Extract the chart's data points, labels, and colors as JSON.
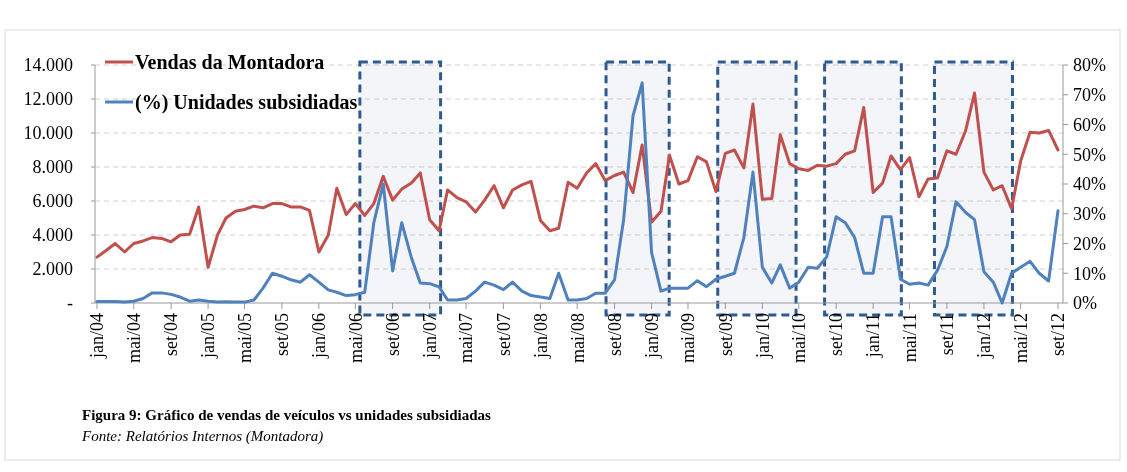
{
  "chart_data": {
    "type": "line",
    "title": "Figura 9: Gráfico de vendas de veículos vs unidades subsidiadas",
    "annotations": [
      "Fonte: Relatórios Internos (Montadora)"
    ],
    "x": [
      "2004-01",
      "2004-02",
      "2004-03",
      "2004-04",
      "2004-05",
      "2004-06",
      "2004-07",
      "2004-08",
      "2004-09",
      "2004-10",
      "2004-11",
      "2004-12",
      "2005-01",
      "2005-02",
      "2005-03",
      "2005-04",
      "2005-05",
      "2005-06",
      "2005-07",
      "2005-08",
      "2005-09",
      "2005-10",
      "2005-11",
      "2005-12",
      "2006-01",
      "2006-02",
      "2006-03",
      "2006-04",
      "2006-05",
      "2006-06",
      "2006-07",
      "2006-08",
      "2006-09",
      "2006-10",
      "2006-11",
      "2006-12",
      "2007-01",
      "2007-02",
      "2007-03",
      "2007-04",
      "2007-05",
      "2007-06",
      "2007-07",
      "2007-08",
      "2007-09",
      "2007-10",
      "2007-11",
      "2007-12",
      "2008-01",
      "2008-02",
      "2008-03",
      "2008-04",
      "2008-05",
      "2008-06",
      "2008-07",
      "2008-08",
      "2008-09",
      "2008-10",
      "2008-11",
      "2008-12",
      "2009-01",
      "2009-02",
      "2009-03",
      "2009-04",
      "2009-05",
      "2009-06",
      "2009-07",
      "2009-08",
      "2009-09",
      "2009-10",
      "2009-11",
      "2009-12",
      "2010-01",
      "2010-02",
      "2010-03",
      "2010-04",
      "2010-05",
      "2010-06",
      "2010-07",
      "2010-08",
      "2010-09",
      "2010-10",
      "2010-11",
      "2010-12",
      "2011-01",
      "2011-02",
      "2011-03",
      "2011-04",
      "2011-05",
      "2011-06",
      "2011-07",
      "2011-08",
      "2011-09",
      "2011-10",
      "2011-11",
      "2011-12",
      "2012-01",
      "2012-02",
      "2012-03",
      "2012-04",
      "2012-05",
      "2012-06",
      "2012-07",
      "2012-08",
      "2012-09"
    ],
    "series": [
      {
        "name": "Vendas da Montadora",
        "color": "#c0504d",
        "values": [
          2700,
          3100,
          3500,
          3000,
          3500,
          3650,
          3850,
          3800,
          3600,
          4000,
          4050,
          5650,
          2100,
          4000,
          5000,
          5400,
          5500,
          5700,
          5600,
          5850,
          5850,
          5650,
          5650,
          5450,
          3000,
          4000,
          6750,
          5200,
          5850,
          5150,
          5850,
          7450,
          6050,
          6700,
          7050,
          7650,
          4900,
          4250,
          6650,
          6200,
          5950,
          5350,
          6050,
          6900,
          5600,
          6650,
          6950,
          7150,
          4850,
          4250,
          4400,
          7100,
          6750,
          7650,
          8200,
          7200,
          7500,
          7700,
          6500,
          9300,
          4750,
          5400,
          8700,
          7000,
          7200,
          8600,
          8300,
          6550,
          8800,
          9000,
          7950,
          11700,
          6100,
          6150,
          9900,
          8200,
          7900,
          7800,
          8100,
          8050,
          8200,
          8750,
          8950,
          11500,
          6500,
          7050,
          8650,
          7850,
          8550,
          6250,
          7300,
          7350,
          8950,
          8750,
          10100,
          12350,
          7700,
          6650,
          6900,
          5550,
          8350,
          10050,
          10000,
          10150,
          9000
        ]
      },
      {
        "name": "(%) Unidades subsidiadas",
        "color": "#4f81bd",
        "axis": "y2",
        "values": [
          0.5,
          0.5,
          0.5,
          0.3,
          0.6,
          1.5,
          3.4,
          3.4,
          2.9,
          2,
          0.6,
          1,
          0.6,
          0.3,
          0.4,
          0.3,
          0.3,
          1,
          5,
          10,
          9,
          7.8,
          7,
          9.5,
          7,
          4.4,
          3.6,
          2.5,
          2.8,
          3.6,
          27,
          40,
          10.8,
          27,
          15.5,
          6.7,
          6.5,
          5.4,
          1,
          1,
          1.5,
          4,
          7,
          6,
          4.5,
          7,
          4,
          2.5,
          2,
          1.5,
          10,
          1,
          1,
          1.5,
          3.3,
          3.3,
          7.8,
          28,
          63,
          74,
          17,
          4,
          5,
          5,
          5,
          7.5,
          5.5,
          8,
          9,
          10,
          22,
          44,
          12,
          6.7,
          12.8,
          5,
          7,
          12,
          11.7,
          15.5,
          29,
          27,
          22,
          10,
          10,
          29,
          29,
          8,
          6.3,
          6.7,
          6,
          11,
          19,
          34,
          30.5,
          28,
          10.5,
          7,
          0,
          10,
          12,
          14,
          10,
          7.4,
          31
        ]
      }
    ],
    "xlim": [
      "2004-01",
      "2012-09"
    ],
    "xticks": [
      {
        "value": "2004-01",
        "label": "jan/04"
      },
      {
        "value": "2004-05",
        "label": "mai/04"
      },
      {
        "value": "2004-09",
        "label": "set/04"
      },
      {
        "value": "2005-01",
        "label": "jan/05"
      },
      {
        "value": "2005-05",
        "label": "mai/05"
      },
      {
        "value": "2005-09",
        "label": "set/05"
      },
      {
        "value": "2006-01",
        "label": "jan/06"
      },
      {
        "value": "2006-05",
        "label": "mai/06"
      },
      {
        "value": "2006-09",
        "label": "set/06"
      },
      {
        "value": "2007-01",
        "label": "jan/07"
      },
      {
        "value": "2007-05",
        "label": "mai/07"
      },
      {
        "value": "2007-09",
        "label": "set/07"
      },
      {
        "value": "2008-01",
        "label": "jan/08"
      },
      {
        "value": "2008-05",
        "label": "mai/08"
      },
      {
        "value": "2008-09",
        "label": "set/08"
      },
      {
        "value": "2009-01",
        "label": "jan/09"
      },
      {
        "value": "2009-05",
        "label": "mai/09"
      },
      {
        "value": "2009-09",
        "label": "set/09"
      },
      {
        "value": "2010-01",
        "label": "jan/10"
      },
      {
        "value": "2010-05",
        "label": "mai/10"
      },
      {
        "value": "2010-09",
        "label": "set/10"
      },
      {
        "value": "2011-01",
        "label": "jan/11"
      },
      {
        "value": "2011-05",
        "label": "mai/11"
      },
      {
        "value": "2011-09",
        "label": "set/11"
      },
      {
        "value": "2012-01",
        "label": "jan/12"
      },
      {
        "value": "2012-05",
        "label": "mai/12"
      },
      {
        "value": "2012-09",
        "label": "set/12"
      }
    ],
    "ylim": [
      0,
      14000
    ],
    "yticks": [
      {
        "value": 0,
        "label": "-"
      },
      {
        "value": 2000,
        "label": "2.000"
      },
      {
        "value": 4000,
        "label": "4.000"
      },
      {
        "value": 6000,
        "label": "6.000"
      },
      {
        "value": 8000,
        "label": "8.000"
      },
      {
        "value": 10000,
        "label": "10.000"
      },
      {
        "value": 12000,
        "label": "12.000"
      },
      {
        "value": 14000,
        "label": "14.000"
      }
    ],
    "y2lim": [
      0,
      80
    ],
    "y2ticks": [
      {
        "value": 0,
        "label": "0%"
      },
      {
        "value": 10,
        "label": "10%"
      },
      {
        "value": 20,
        "label": "20%"
      },
      {
        "value": 30,
        "label": "30%"
      },
      {
        "value": 40,
        "label": "40%"
      },
      {
        "value": 50,
        "label": "50%"
      },
      {
        "value": 60,
        "label": "60%"
      },
      {
        "value": 70,
        "label": "70%"
      },
      {
        "value": 80,
        "label": "80%"
      }
    ],
    "bands": [
      {
        "axis": "x",
        "from": "2006-05-16",
        "to": "2007-02-06",
        "color": "#2f5a8f"
      },
      {
        "axis": "x",
        "from": "2008-08-04",
        "to": "2009-02-28",
        "color": "#2f5a8f"
      },
      {
        "axis": "x",
        "from": "2009-08-07",
        "to": "2010-04-22",
        "color": "#2f5a8f"
      },
      {
        "axis": "x",
        "from": "2010-07-25",
        "to": "2011-04-04",
        "color": "#2f5a8f"
      },
      {
        "axis": "x",
        "from": "2011-07-22",
        "to": "2012-04-04",
        "color": "#2f5a8f"
      }
    ],
    "grid": "y",
    "legend": "top left",
    "line_style": "solid"
  }
}
